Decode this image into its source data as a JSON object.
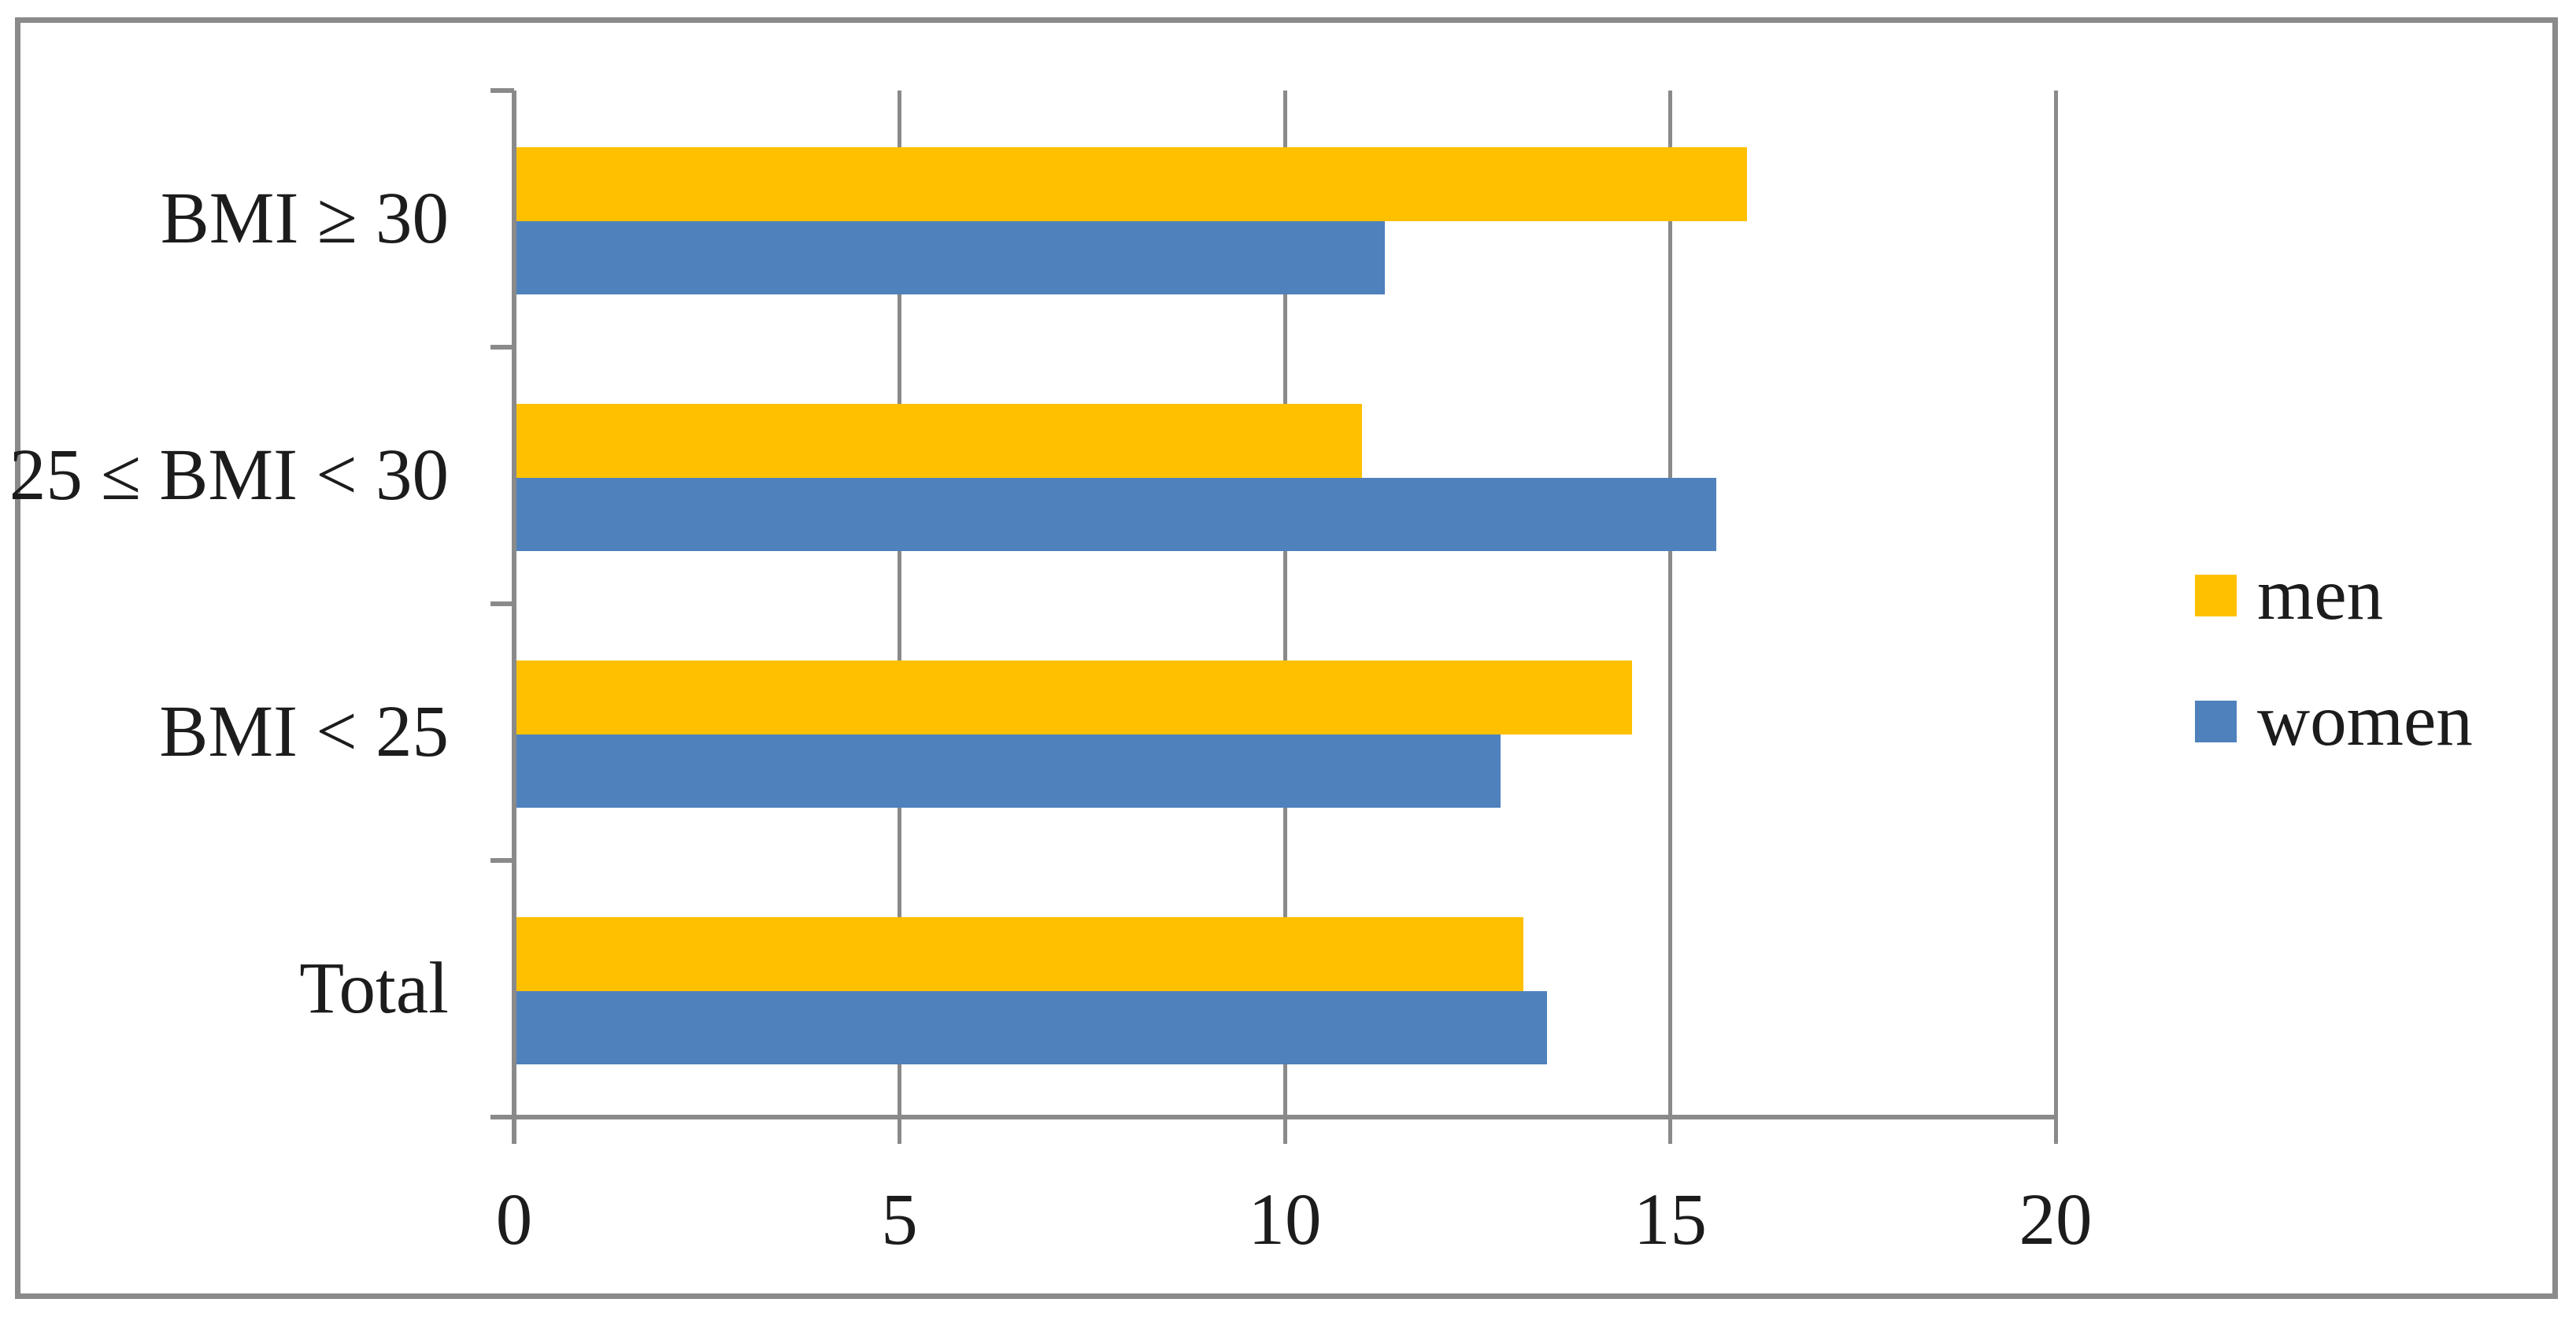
{
  "chart_data": {
    "type": "bar",
    "orientation": "horizontal",
    "title": "",
    "categories": [
      "BMI ≥ 30",
      "25 ≤ BMI < 30",
      "BMI < 25",
      "Total"
    ],
    "series": [
      {
        "name": "men",
        "color": "#FFC000",
        "values": [
          16.0,
          11.0,
          14.5,
          13.1
        ]
      },
      {
        "name": "women",
        "color": "#4F81BD",
        "values": [
          11.3,
          15.6,
          12.8,
          13.4
        ]
      }
    ],
    "x_axis": {
      "min": 0,
      "max": 20,
      "tick_step": 5,
      "tick_labels": [
        "0",
        "5",
        "10",
        "15",
        "20"
      ]
    },
    "grid": true,
    "legend_position": "right"
  },
  "colors": {
    "axis": "#8A8A8A",
    "grid": "#8A8A8A",
    "frame_border": "#8A8A8A",
    "text": "#1C1C1C",
    "background": "#FFFFFF"
  }
}
